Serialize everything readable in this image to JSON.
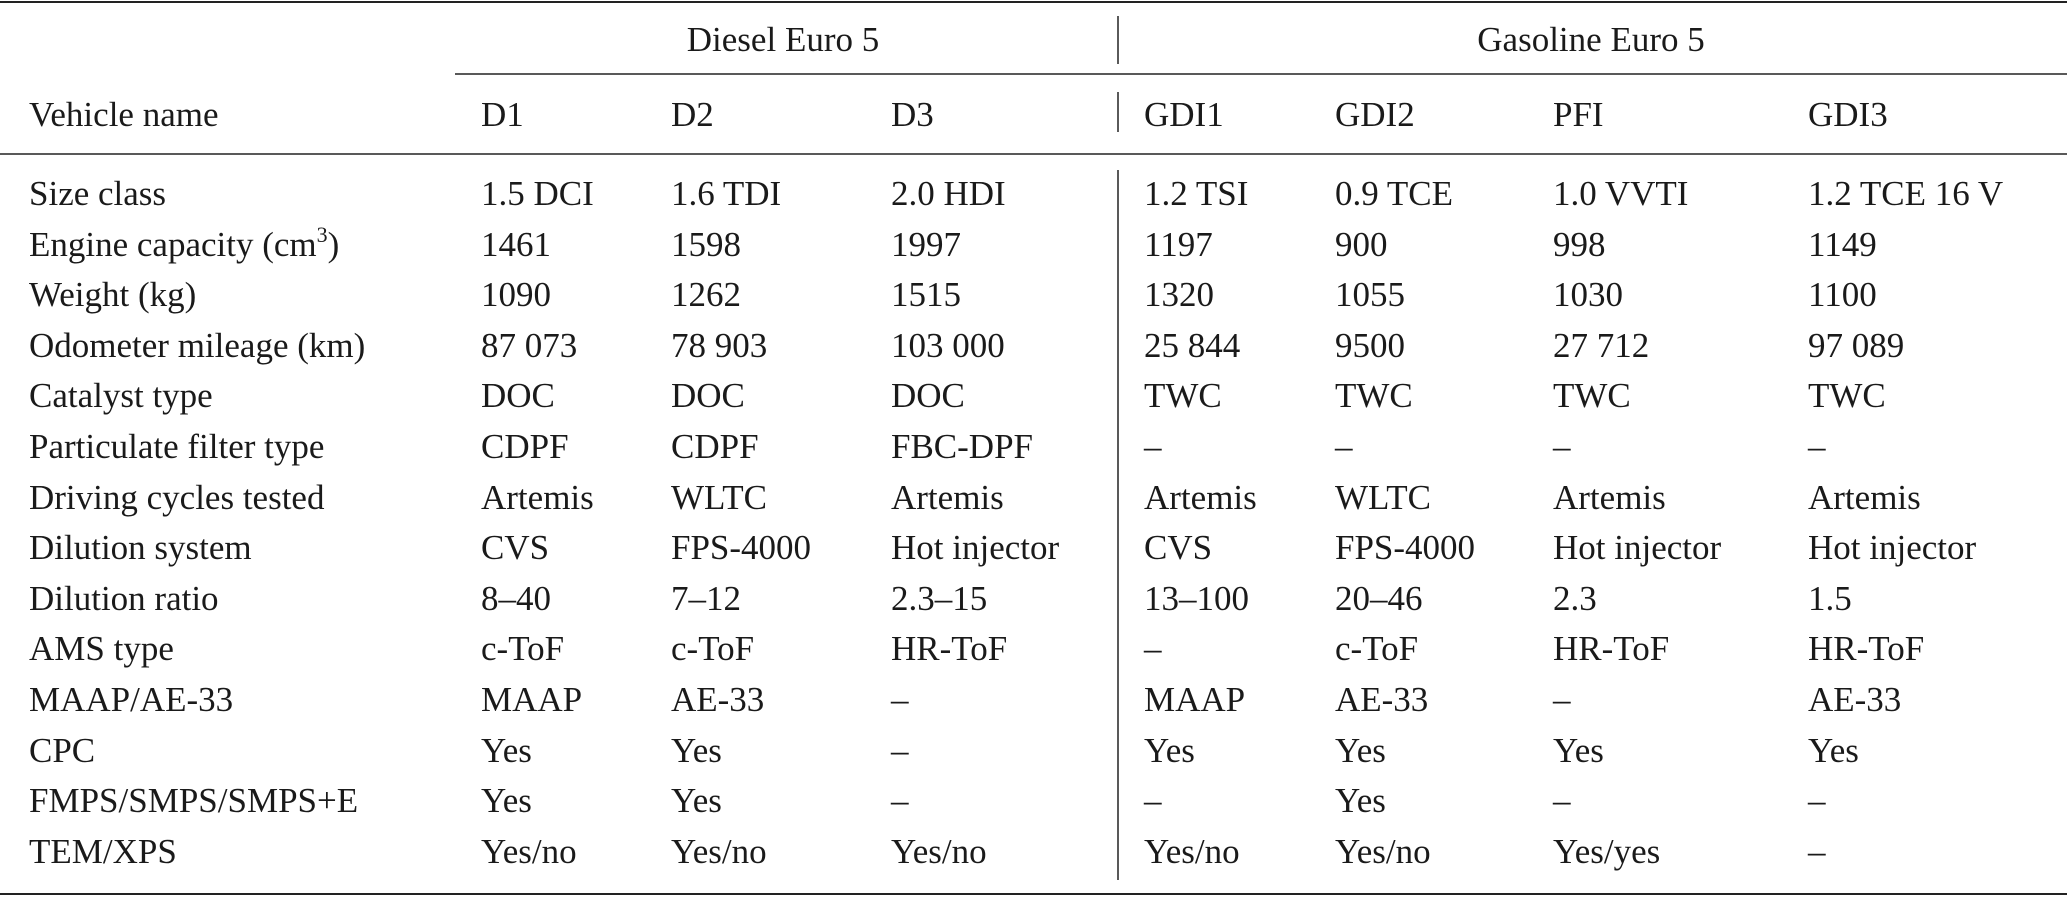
{
  "table": {
    "groups": [
      "Diesel Euro 5",
      "Gasoline Euro 5"
    ],
    "header": [
      "Vehicle name",
      "D1",
      "D2",
      "D3",
      "GDI1",
      "GDI2",
      "PFI",
      "GDI3"
    ],
    "rows": [
      [
        "Size class",
        "1.5 DCI",
        "1.6 TDI",
        "2.0 HDI",
        "1.2 TSI",
        "0.9 TCE",
        "1.0 VVTI",
        "1.2 TCE 16 V"
      ],
      [
        {
          "text": "Engine capacity (cm",
          "sup": "3",
          "tail": ")"
        },
        "1461",
        "1598",
        "1997",
        "1197",
        "900",
        "998",
        "1149"
      ],
      [
        "Weight (kg)",
        "1090",
        "1262",
        "1515",
        "1320",
        "1055",
        "1030",
        "1100"
      ],
      [
        "Odometer mileage (km)",
        "87 073",
        "78 903",
        "103 000",
        "25 844",
        "9500",
        "27 712",
        "97 089"
      ],
      [
        "Catalyst type",
        "DOC",
        "DOC",
        "DOC",
        "TWC",
        "TWC",
        "TWC",
        "TWC"
      ],
      [
        "Particulate filter type",
        "CDPF",
        "CDPF",
        "FBC-DPF",
        "–",
        "–",
        "–",
        "–"
      ],
      [
        "Driving cycles tested",
        "Artemis",
        "WLTC",
        "Artemis",
        "Artemis",
        "WLTC",
        "Artemis",
        "Artemis"
      ],
      [
        "Dilution system",
        "CVS",
        "FPS-4000",
        "Hot injector",
        "CVS",
        "FPS-4000",
        "Hot injector",
        "Hot injector"
      ],
      [
        "Dilution ratio",
        "8–40",
        "7–12",
        "2.3–15",
        "13–100",
        "20–46",
        "2.3",
        "1.5"
      ],
      [
        "AMS type",
        "c-ToF",
        "c-ToF",
        "HR-ToF",
        "–",
        "c-ToF",
        "HR-ToF",
        "HR-ToF"
      ],
      [
        "MAAP/AE-33",
        "MAAP",
        "AE-33",
        "–",
        "MAAP",
        "AE-33",
        "–",
        "AE-33"
      ],
      [
        "CPC",
        "Yes",
        "Yes",
        "–",
        "Yes",
        "Yes",
        "Yes",
        "Yes"
      ],
      [
        "FMPS/SMPS/SMPS+E",
        "Yes",
        "Yes",
        "–",
        "–",
        "Yes",
        "–",
        "–"
      ],
      [
        "TEM/XPS",
        "Yes/no",
        "Yes/no",
        "Yes/no",
        "Yes/no",
        "Yes/no",
        "Yes/yes",
        "–"
      ]
    ]
  }
}
